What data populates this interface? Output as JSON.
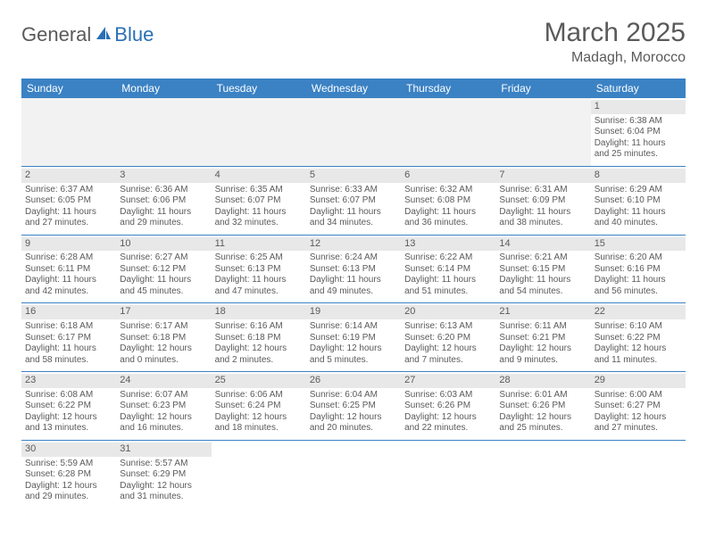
{
  "logo": {
    "general": "General",
    "blue": "Blue"
  },
  "title": "March 2025",
  "location": "Madagh, Morocco",
  "colors": {
    "header_bg": "#3b82c4",
    "header_text": "#ffffff",
    "daynum_bg": "#e8e8e8",
    "empty_bg": "#f2f2f2",
    "row_border": "#3b82c4",
    "text": "#5a5a5a"
  },
  "day_headers": [
    "Sunday",
    "Monday",
    "Tuesday",
    "Wednesday",
    "Thursday",
    "Friday",
    "Saturday"
  ],
  "weeks": [
    [
      {
        "empty": true
      },
      {
        "empty": true
      },
      {
        "empty": true
      },
      {
        "empty": true
      },
      {
        "empty": true
      },
      {
        "empty": true
      },
      {
        "day": "1",
        "sunrise": "Sunrise: 6:38 AM",
        "sunset": "Sunset: 6:04 PM",
        "daylight1": "Daylight: 11 hours",
        "daylight2": "and 25 minutes."
      }
    ],
    [
      {
        "day": "2",
        "sunrise": "Sunrise: 6:37 AM",
        "sunset": "Sunset: 6:05 PM",
        "daylight1": "Daylight: 11 hours",
        "daylight2": "and 27 minutes."
      },
      {
        "day": "3",
        "sunrise": "Sunrise: 6:36 AM",
        "sunset": "Sunset: 6:06 PM",
        "daylight1": "Daylight: 11 hours",
        "daylight2": "and 29 minutes."
      },
      {
        "day": "4",
        "sunrise": "Sunrise: 6:35 AM",
        "sunset": "Sunset: 6:07 PM",
        "daylight1": "Daylight: 11 hours",
        "daylight2": "and 32 minutes."
      },
      {
        "day": "5",
        "sunrise": "Sunrise: 6:33 AM",
        "sunset": "Sunset: 6:07 PM",
        "daylight1": "Daylight: 11 hours",
        "daylight2": "and 34 minutes."
      },
      {
        "day": "6",
        "sunrise": "Sunrise: 6:32 AM",
        "sunset": "Sunset: 6:08 PM",
        "daylight1": "Daylight: 11 hours",
        "daylight2": "and 36 minutes."
      },
      {
        "day": "7",
        "sunrise": "Sunrise: 6:31 AM",
        "sunset": "Sunset: 6:09 PM",
        "daylight1": "Daylight: 11 hours",
        "daylight2": "and 38 minutes."
      },
      {
        "day": "8",
        "sunrise": "Sunrise: 6:29 AM",
        "sunset": "Sunset: 6:10 PM",
        "daylight1": "Daylight: 11 hours",
        "daylight2": "and 40 minutes."
      }
    ],
    [
      {
        "day": "9",
        "sunrise": "Sunrise: 6:28 AM",
        "sunset": "Sunset: 6:11 PM",
        "daylight1": "Daylight: 11 hours",
        "daylight2": "and 42 minutes."
      },
      {
        "day": "10",
        "sunrise": "Sunrise: 6:27 AM",
        "sunset": "Sunset: 6:12 PM",
        "daylight1": "Daylight: 11 hours",
        "daylight2": "and 45 minutes."
      },
      {
        "day": "11",
        "sunrise": "Sunrise: 6:25 AM",
        "sunset": "Sunset: 6:13 PM",
        "daylight1": "Daylight: 11 hours",
        "daylight2": "and 47 minutes."
      },
      {
        "day": "12",
        "sunrise": "Sunrise: 6:24 AM",
        "sunset": "Sunset: 6:13 PM",
        "daylight1": "Daylight: 11 hours",
        "daylight2": "and 49 minutes."
      },
      {
        "day": "13",
        "sunrise": "Sunrise: 6:22 AM",
        "sunset": "Sunset: 6:14 PM",
        "daylight1": "Daylight: 11 hours",
        "daylight2": "and 51 minutes."
      },
      {
        "day": "14",
        "sunrise": "Sunrise: 6:21 AM",
        "sunset": "Sunset: 6:15 PM",
        "daylight1": "Daylight: 11 hours",
        "daylight2": "and 54 minutes."
      },
      {
        "day": "15",
        "sunrise": "Sunrise: 6:20 AM",
        "sunset": "Sunset: 6:16 PM",
        "daylight1": "Daylight: 11 hours",
        "daylight2": "and 56 minutes."
      }
    ],
    [
      {
        "day": "16",
        "sunrise": "Sunrise: 6:18 AM",
        "sunset": "Sunset: 6:17 PM",
        "daylight1": "Daylight: 11 hours",
        "daylight2": "and 58 minutes."
      },
      {
        "day": "17",
        "sunrise": "Sunrise: 6:17 AM",
        "sunset": "Sunset: 6:18 PM",
        "daylight1": "Daylight: 12 hours",
        "daylight2": "and 0 minutes."
      },
      {
        "day": "18",
        "sunrise": "Sunrise: 6:16 AM",
        "sunset": "Sunset: 6:18 PM",
        "daylight1": "Daylight: 12 hours",
        "daylight2": "and 2 minutes."
      },
      {
        "day": "19",
        "sunrise": "Sunrise: 6:14 AM",
        "sunset": "Sunset: 6:19 PM",
        "daylight1": "Daylight: 12 hours",
        "daylight2": "and 5 minutes."
      },
      {
        "day": "20",
        "sunrise": "Sunrise: 6:13 AM",
        "sunset": "Sunset: 6:20 PM",
        "daylight1": "Daylight: 12 hours",
        "daylight2": "and 7 minutes."
      },
      {
        "day": "21",
        "sunrise": "Sunrise: 6:11 AM",
        "sunset": "Sunset: 6:21 PM",
        "daylight1": "Daylight: 12 hours",
        "daylight2": "and 9 minutes."
      },
      {
        "day": "22",
        "sunrise": "Sunrise: 6:10 AM",
        "sunset": "Sunset: 6:22 PM",
        "daylight1": "Daylight: 12 hours",
        "daylight2": "and 11 minutes."
      }
    ],
    [
      {
        "day": "23",
        "sunrise": "Sunrise: 6:08 AM",
        "sunset": "Sunset: 6:22 PM",
        "daylight1": "Daylight: 12 hours",
        "daylight2": "and 13 minutes."
      },
      {
        "day": "24",
        "sunrise": "Sunrise: 6:07 AM",
        "sunset": "Sunset: 6:23 PM",
        "daylight1": "Daylight: 12 hours",
        "daylight2": "and 16 minutes."
      },
      {
        "day": "25",
        "sunrise": "Sunrise: 6:06 AM",
        "sunset": "Sunset: 6:24 PM",
        "daylight1": "Daylight: 12 hours",
        "daylight2": "and 18 minutes."
      },
      {
        "day": "26",
        "sunrise": "Sunrise: 6:04 AM",
        "sunset": "Sunset: 6:25 PM",
        "daylight1": "Daylight: 12 hours",
        "daylight2": "and 20 minutes."
      },
      {
        "day": "27",
        "sunrise": "Sunrise: 6:03 AM",
        "sunset": "Sunset: 6:26 PM",
        "daylight1": "Daylight: 12 hours",
        "daylight2": "and 22 minutes."
      },
      {
        "day": "28",
        "sunrise": "Sunrise: 6:01 AM",
        "sunset": "Sunset: 6:26 PM",
        "daylight1": "Daylight: 12 hours",
        "daylight2": "and 25 minutes."
      },
      {
        "day": "29",
        "sunrise": "Sunrise: 6:00 AM",
        "sunset": "Sunset: 6:27 PM",
        "daylight1": "Daylight: 12 hours",
        "daylight2": "and 27 minutes."
      }
    ],
    [
      {
        "day": "30",
        "sunrise": "Sunrise: 5:59 AM",
        "sunset": "Sunset: 6:28 PM",
        "daylight1": "Daylight: 12 hours",
        "daylight2": "and 29 minutes."
      },
      {
        "day": "31",
        "sunrise": "Sunrise: 5:57 AM",
        "sunset": "Sunset: 6:29 PM",
        "daylight1": "Daylight: 12 hours",
        "daylight2": "and 31 minutes."
      },
      {
        "empty": true,
        "blank": true
      },
      {
        "empty": true,
        "blank": true
      },
      {
        "empty": true,
        "blank": true
      },
      {
        "empty": true,
        "blank": true
      },
      {
        "empty": true,
        "blank": true
      }
    ]
  ]
}
